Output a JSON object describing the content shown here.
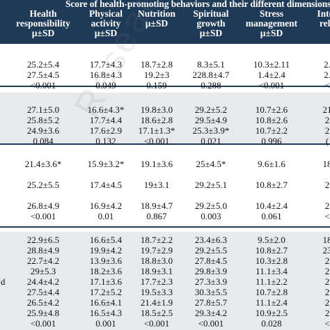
{
  "header": {
    "title": "Score of health-promoting behaviors and their different dimensions",
    "columns": [
      {
        "lines": [
          "Health",
          "responsibility",
          "µ±SD"
        ]
      },
      {
        "lines": [
          "Physical",
          "activity",
          "µ±SD"
        ]
      },
      {
        "lines": [
          "Nutrition",
          "µ±SD"
        ]
      },
      {
        "lines": [
          "Spiritual",
          "growth",
          "µ±SD"
        ]
      },
      {
        "lines": [
          "Stress",
          "management",
          "µ±SD"
        ]
      },
      {
        "lines": [
          "Inter",
          "rela"
        ]
      }
    ]
  },
  "groups": [
    {
      "rows": [
        {
          "cells": [
            "25.2±5.4",
            "17.7±4.3",
            "18.7±2.8",
            "8.3±5.1",
            "10.3±2.11",
            "2."
          ]
        },
        {
          "cells": [
            "27.5±4.5",
            "16.8±4.3",
            "19.2±3",
            "228.8±4.7",
            "1.4±2.4",
            "2."
          ]
        },
        {
          "cells": [
            "<0.001",
            "0.049",
            "0.159",
            "0.288",
            "<0.001",
            "<"
          ]
        }
      ]
    },
    {
      "rows": [
        {
          "cells": [
            "27.1±5.0",
            "16.6±4.3*",
            "19.8±3.0",
            "29.2±5.2",
            "10.7±2.6",
            "21"
          ]
        },
        {
          "cells": [
            "25.8±5.2",
            "17.7±4.4",
            "18.6±2.8",
            "29.5±4.9",
            "10.8±2.6",
            "2"
          ]
        },
        {
          "cells": [
            "24.9±3.6",
            "17.6±2.9",
            "17.1±1.3*",
            "25.3±3.9*",
            "10.7±2.2",
            "2"
          ]
        },
        {
          "cells": [
            "0.084",
            "0.132",
            "<0.001",
            "0.021",
            "0.996",
            "("
          ]
        }
      ]
    },
    {
      "rows": [
        {
          "cells": [
            "21.4±3.6*",
            "15.9±3.2*",
            "19.1±3.6",
            "25±4.5*",
            "9.6±1.6",
            "18"
          ]
        },
        {
          "cells": [
            "25.2±5.5",
            "17.4±4.5",
            "19±3.1",
            "29.2±5.1",
            "10.8±2.7",
            "2"
          ]
        },
        {
          "cells": [
            "26.8±4.9",
            "16.9±4.2",
            "18.9±4.7",
            "29.2±5.0",
            "10.4±2.4",
            "2"
          ]
        },
        {
          "cells": [
            "<0.001",
            "0.01",
            "0.867",
            "0.003",
            "0.061",
            "<"
          ]
        }
      ]
    },
    {
      "last_row_label": "d",
      "rows": [
        {
          "cells": [
            "22.9±6.5",
            "16.6±5.4",
            "18.7±2.2",
            "23.4±6.3",
            "9.5±2.0",
            "18"
          ]
        },
        {
          "cells": [
            "28.8±4.9",
            "19.9±4.2",
            "19.7±2.9",
            "29.2±5.5",
            "10.8±2.7",
            "23"
          ]
        },
        {
          "cells": [
            "22.7±4.2",
            "13.9±3.6",
            "18.8±3.0",
            "27.8±4.5",
            "10.3±2.8",
            "2"
          ]
        },
        {
          "cells": [
            "29±5.3",
            "18.2±3.6",
            "18.9±3.1",
            "29.8±3.9",
            "11.1±3.4",
            "2"
          ]
        },
        {
          "cells": [
            "24.4±4.2",
            "17.1±3.6",
            "17.7±2.3",
            "27.3±3.9",
            "11.1±2.2",
            "2"
          ]
        },
        {
          "cells": [
            "27.5±4.4",
            "17.2±5.2",
            "19.5±3.3",
            "30.3±5.5",
            "10.7±2.8",
            "2"
          ]
        },
        {
          "cells": [
            "26.5±4.2",
            "16.6±4.1",
            "21.4±1.9",
            "27.8±5.7",
            "11.1±2.4",
            "2"
          ]
        },
        {
          "cells": [
            "25.9±4.8",
            "16.5±4.3",
            "18.5±2.5",
            "29.3±4.2",
            "10.9±2.5",
            "2"
          ]
        },
        {
          "cells": [
            "<0.001",
            "0.001",
            "<0.001",
            "<0.001",
            "0.028",
            "<"
          ]
        }
      ]
    }
  ],
  "watermark": "ResearchGate"
}
